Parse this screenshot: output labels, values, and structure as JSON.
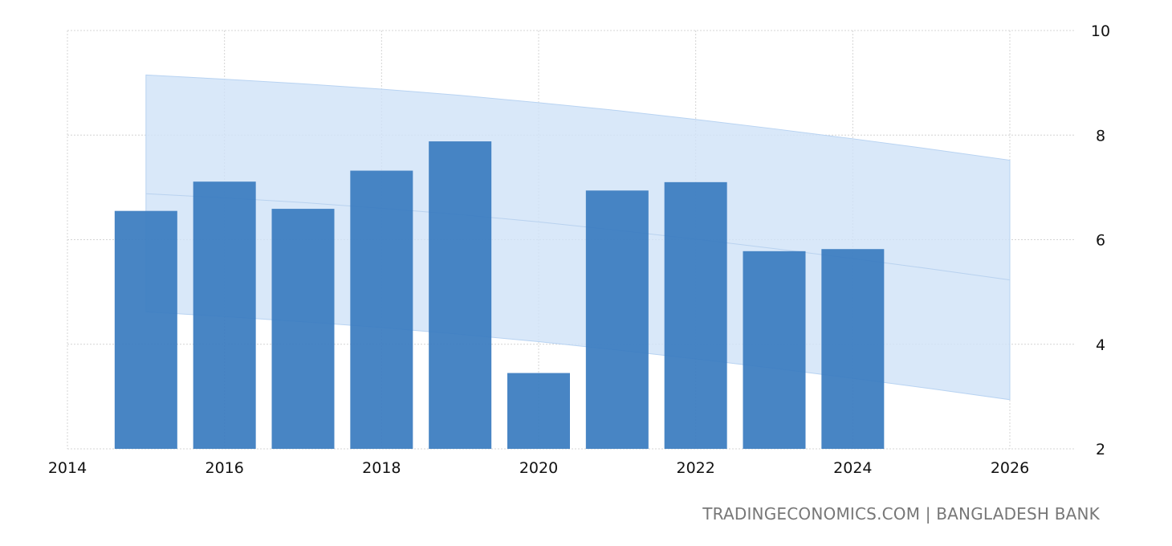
{
  "chart_data": {
    "type": "bar",
    "title": "",
    "xlabel": "",
    "ylabel": "",
    "x": [
      2015,
      2016,
      2017,
      2018,
      2019,
      2020,
      2021,
      2022,
      2023,
      2024
    ],
    "values": [
      6.55,
      7.11,
      6.59,
      7.32,
      7.88,
      3.45,
      6.94,
      7.1,
      5.78,
      5.82
    ],
    "xlim": [
      2014,
      2026
    ],
    "ylim": [
      2,
      10
    ],
    "xticks": [
      "2014",
      "2016",
      "2018",
      "2020",
      "2022",
      "2024",
      "2026"
    ],
    "yticks": [
      "2",
      "4",
      "6",
      "8",
      "10"
    ],
    "grid": true,
    "y_axis_position": "right",
    "forecast_band": {
      "x": [
        2015,
        2016,
        2017,
        2018,
        2019,
        2020,
        2021,
        2022,
        2023,
        2024,
        2025,
        2026
      ],
      "upper": [
        9.15,
        9.07,
        8.98,
        8.88,
        8.76,
        8.62,
        8.47,
        8.3,
        8.12,
        7.93,
        7.73,
        7.52
      ],
      "mid": [
        6.88,
        6.8,
        6.71,
        6.6,
        6.48,
        6.34,
        6.18,
        6.01,
        5.83,
        5.64,
        5.44,
        5.23
      ],
      "lower": [
        4.62,
        4.53,
        4.43,
        4.32,
        4.19,
        4.05,
        3.89,
        3.72,
        3.54,
        3.35,
        3.15,
        2.94
      ]
    },
    "colors": {
      "bar": "#3a7cc0",
      "band": "#cfe2f8",
      "grid": "#d4d4d4"
    }
  },
  "source": {
    "text": "TRADINGECONOMICS.COM | BANGLADESH BANK"
  }
}
